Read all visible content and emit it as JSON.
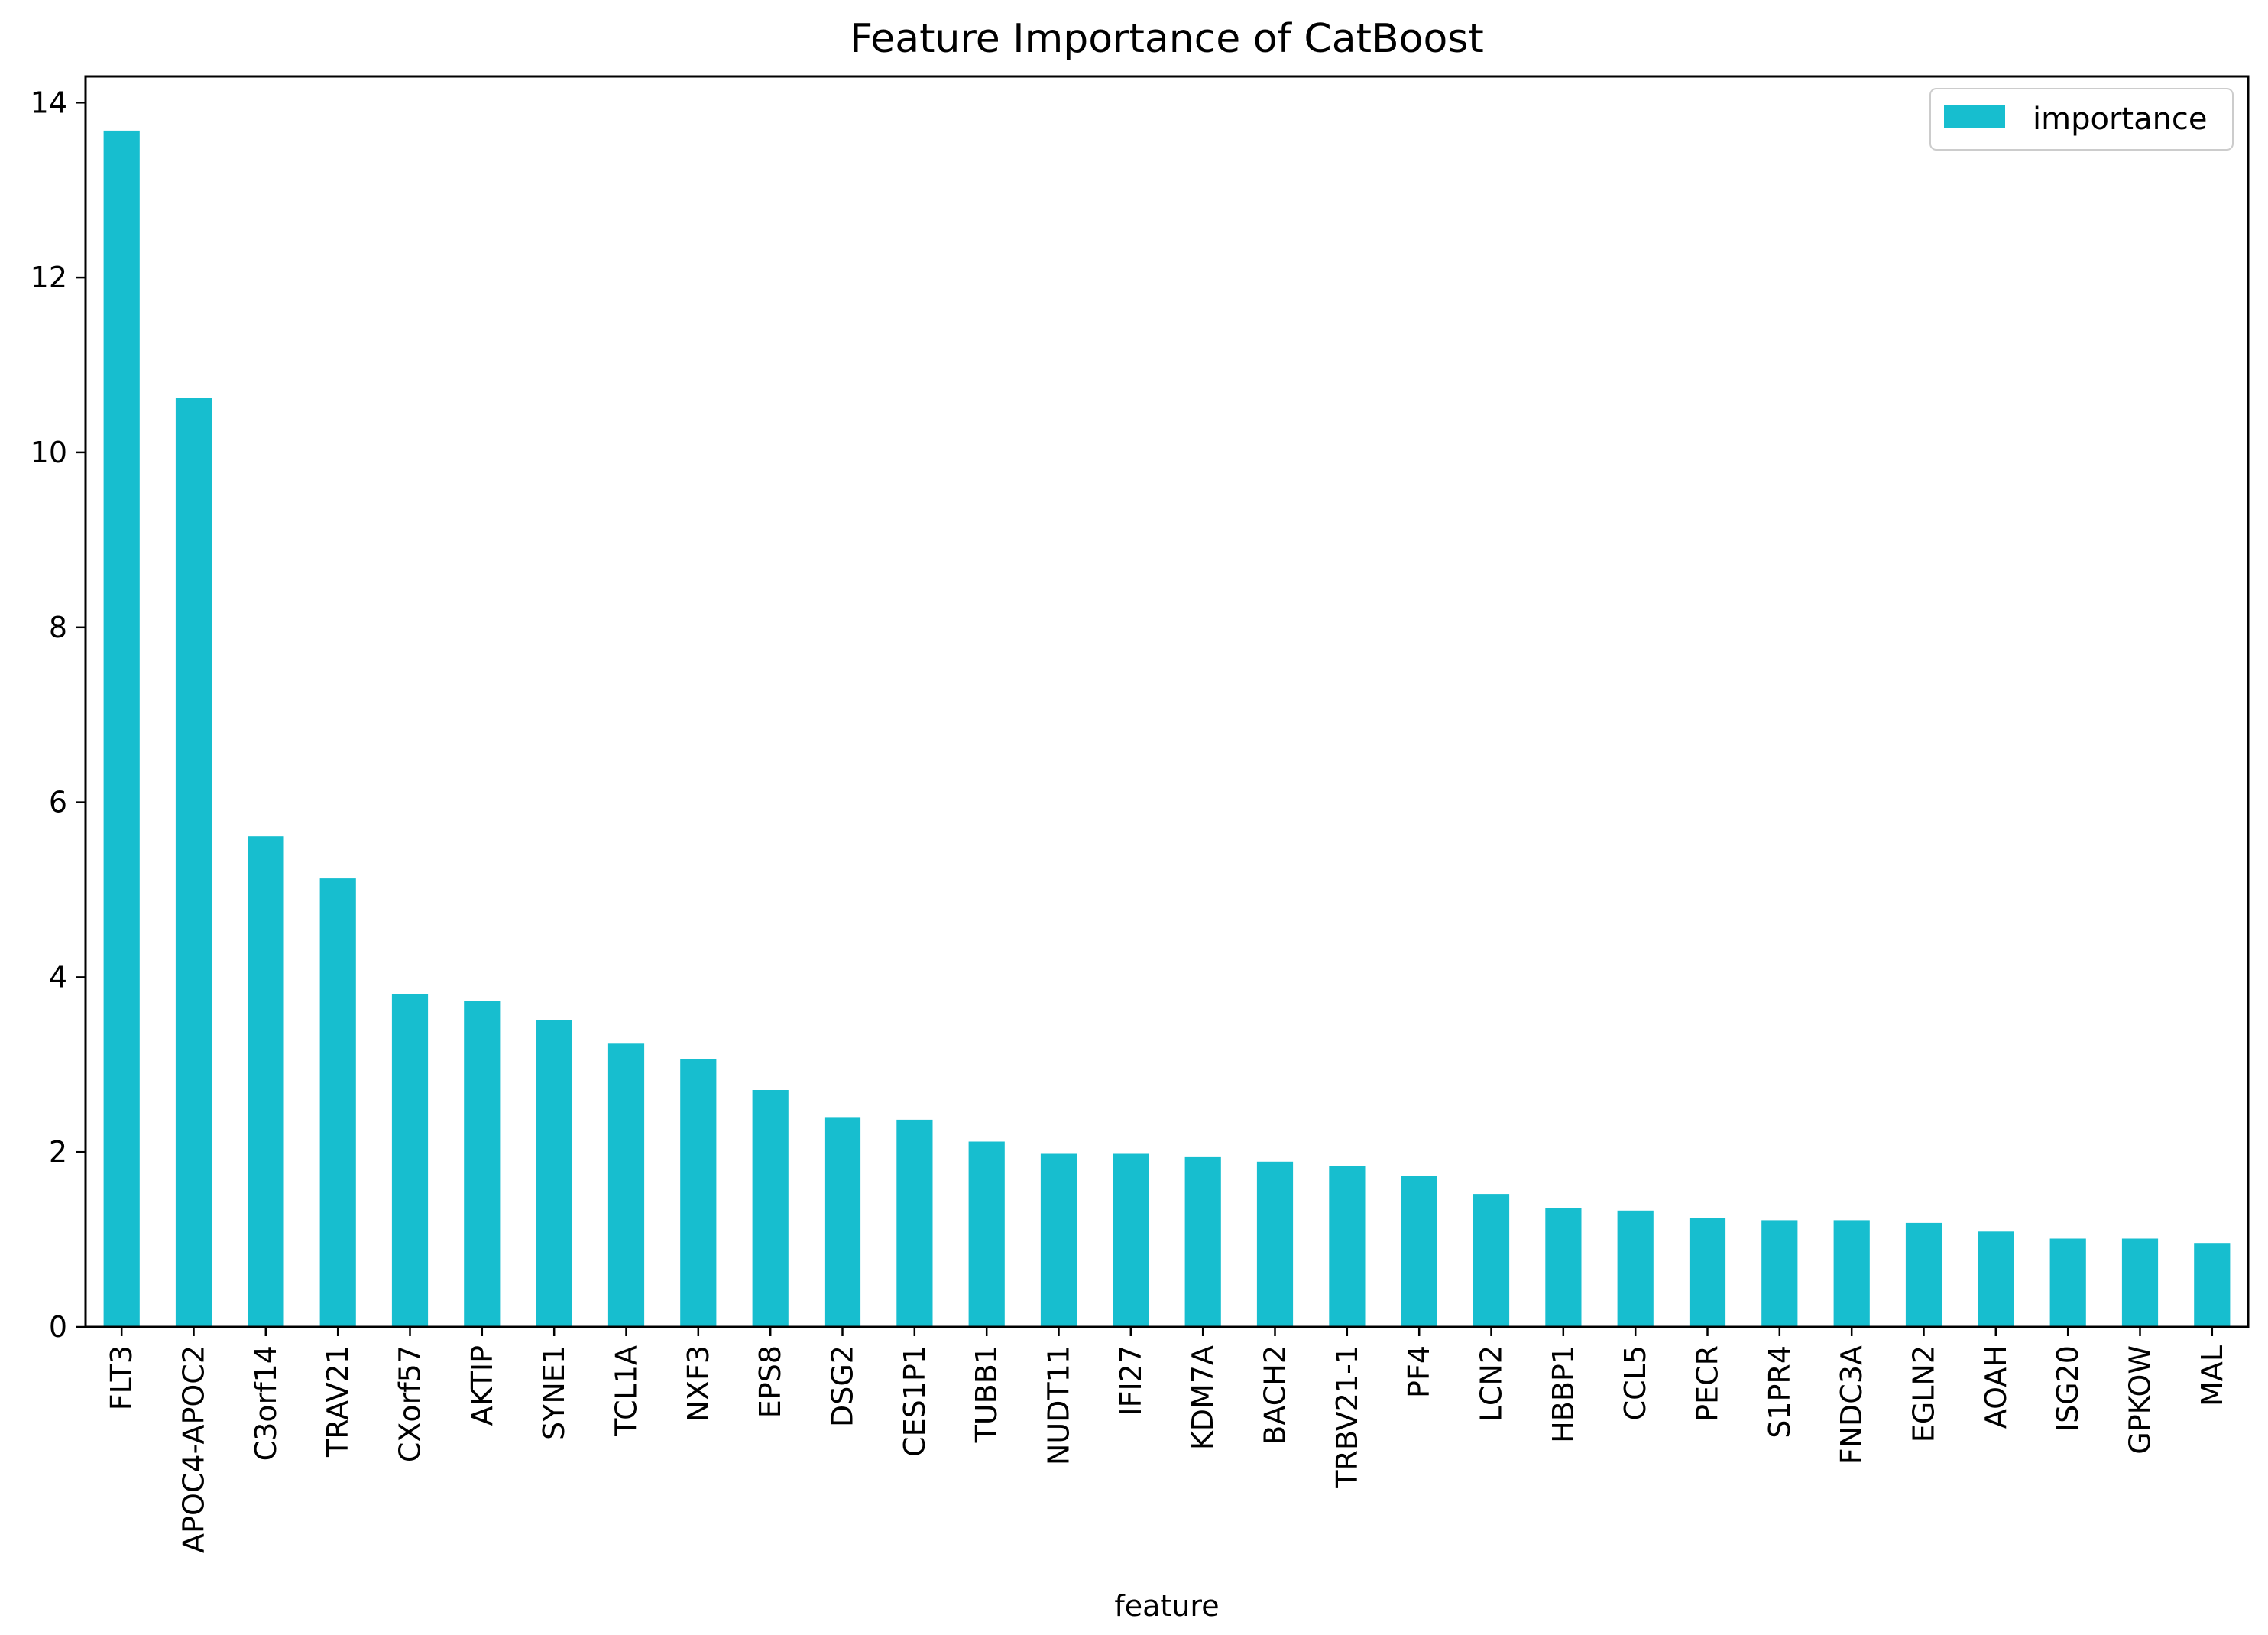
{
  "chart_data": {
    "type": "bar",
    "title": "Feature Importance of CatBoost",
    "xlabel": "feature",
    "ylabel": "",
    "ylim": [
      0,
      14.3
    ],
    "yticks": [
      0,
      2,
      4,
      6,
      8,
      10,
      12,
      14
    ],
    "grid": false,
    "legend_position": "top-right",
    "categories": [
      "FLT3",
      "APOC4-APOC2",
      "C3orf14",
      "TRAV21",
      "CXorf57",
      "AKTIP",
      "SYNE1",
      "TCL1A",
      "NXF3",
      "EPS8",
      "DSG2",
      "CES1P1",
      "TUBB1",
      "NUDT11",
      "IFI27",
      "KDM7A",
      "BACH2",
      "TRBV21-1",
      "PF4",
      "LCN2",
      "HBBP1",
      "CCL5",
      "PECR",
      "S1PR4",
      "FNDC3A",
      "EGLN2",
      "AOAH",
      "ISG20",
      "GPKOW",
      "MAL"
    ],
    "series": [
      {
        "name": "importance",
        "color": "#17becf",
        "values": [
          13.68,
          10.62,
          5.61,
          5.13,
          3.81,
          3.73,
          3.51,
          3.24,
          3.06,
          2.71,
          2.4,
          2.37,
          2.12,
          1.98,
          1.98,
          1.95,
          1.89,
          1.84,
          1.73,
          1.52,
          1.36,
          1.33,
          1.25,
          1.22,
          1.22,
          1.19,
          1.09,
          1.01,
          1.01,
          0.96
        ]
      }
    ]
  }
}
